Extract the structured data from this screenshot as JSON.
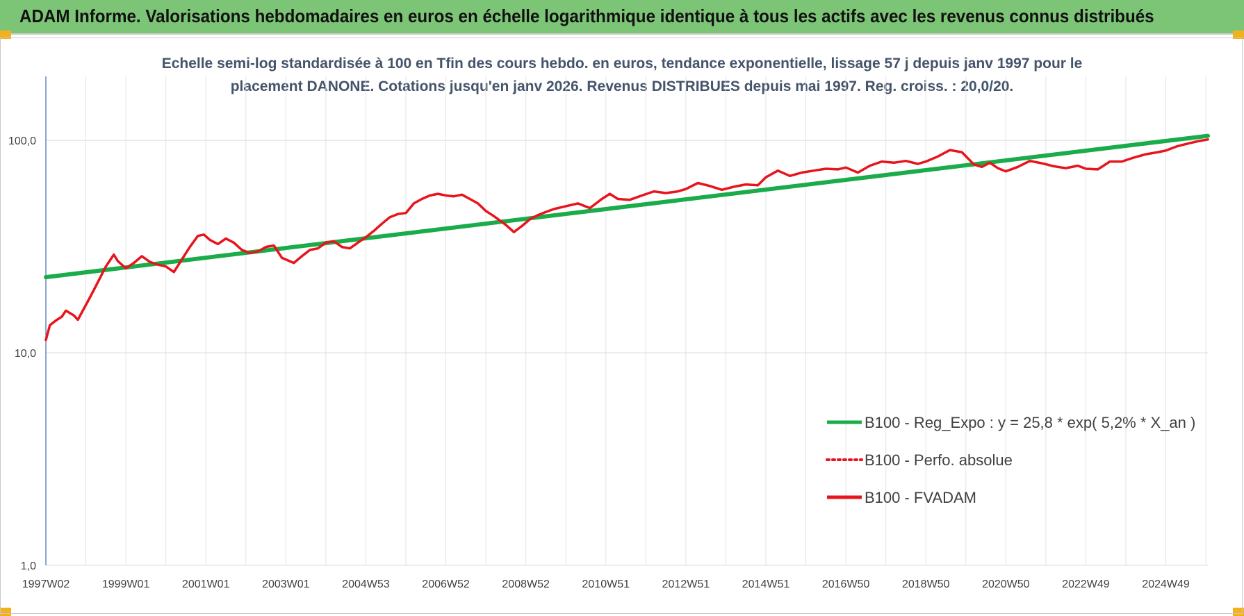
{
  "header": {
    "title": "ADAM Informe. Valorisations hebdomadaires en euros en échelle logarithmique identique à tous les actifs avec les revenus connus distribués"
  },
  "chart_data": {
    "type": "line",
    "y_scale": "log",
    "title_line1": "Echelle semi-log standardisée à 100 en Tfin des cours hebdo. en euros, tendance exponentielle, lissage 57 j depuis janv 1997 pour le",
    "title_line2": "placement DANONE. Cotations jusqu'en janv 2026.  Revenus DISTRIBUES depuis mai 1997. Reg.  croiss. : 20,0/20.",
    "xlabel": "",
    "ylabel": "",
    "ylim": [
      1,
      200
    ],
    "y_ticks": [
      {
        "value": 1,
        "label": "1,0"
      },
      {
        "value": 10,
        "label": "10,0"
      },
      {
        "value": 100,
        "label": "100,0"
      }
    ],
    "x_range": [
      1997.0,
      2026.05
    ],
    "x_ticks": [
      {
        "x": 1997.0,
        "label": "1997W02"
      },
      {
        "x": 1999.0,
        "label": "1999W01"
      },
      {
        "x": 2001.0,
        "label": "2001W01"
      },
      {
        "x": 2003.0,
        "label": "2003W01"
      },
      {
        "x": 2005.0,
        "label": "2004W53"
      },
      {
        "x": 2007.0,
        "label": "2006W52"
      },
      {
        "x": 2009.0,
        "label": "2008W52"
      },
      {
        "x": 2011.0,
        "label": "2010W51"
      },
      {
        "x": 2013.0,
        "label": "2012W51"
      },
      {
        "x": 2015.0,
        "label": "2014W51"
      },
      {
        "x": 2017.0,
        "label": "2016W50"
      },
      {
        "x": 2019.0,
        "label": "2018W50"
      },
      {
        "x": 2021.0,
        "label": "2020W50"
      },
      {
        "x": 2023.0,
        "label": "2022W49"
      },
      {
        "x": 2025.0,
        "label": "2024W49"
      }
    ],
    "grid": true,
    "legend_position": "bottom-right",
    "series": [
      {
        "name": "B100 - Reg_Expo : y = 25,8 * exp( 5,2% *  X_an )",
        "color": "#1aab4a",
        "style": "solid",
        "x": [
          1997.0,
          2026.05
        ],
        "y": [
          22.7,
          105.0
        ]
      },
      {
        "name": "B100 - Perfo. absolue",
        "color": "#e8141b",
        "style": "dotted",
        "x": [],
        "y": []
      },
      {
        "name": "B100 - FVADAM",
        "color": "#e8141b",
        "style": "solid",
        "x": [
          1997.0,
          1997.1,
          1997.25,
          1997.4,
          1997.5,
          1997.7,
          1997.8,
          1998.0,
          1998.1,
          1998.3,
          1998.5,
          1998.7,
          1998.8,
          1999.0,
          1999.2,
          1999.4,
          1999.6,
          1999.8,
          2000.0,
          2000.2,
          2000.4,
          2000.6,
          2000.8,
          2000.95,
          2001.1,
          2001.3,
          2001.5,
          2001.7,
          2001.9,
          2002.1,
          2002.3,
          2002.5,
          2002.7,
          2002.9,
          2003.0,
          2003.2,
          2003.4,
          2003.6,
          2003.8,
          2004.0,
          2004.2,
          2004.4,
          2004.6,
          2004.8,
          2005.0,
          2005.2,
          2005.4,
          2005.6,
          2005.8,
          2006.0,
          2006.2,
          2006.4,
          2006.6,
          2006.8,
          2007.0,
          2007.2,
          2007.4,
          2007.6,
          2007.8,
          2008.0,
          2008.2,
          2008.5,
          2008.7,
          2008.9,
          2009.1,
          2009.3,
          2009.5,
          2009.7,
          2010.0,
          2010.3,
          2010.6,
          2010.9,
          2011.1,
          2011.3,
          2011.6,
          2011.9,
          2012.2,
          2012.5,
          2012.8,
          2013.0,
          2013.3,
          2013.6,
          2013.9,
          2014.2,
          2014.5,
          2014.8,
          2015.0,
          2015.3,
          2015.6,
          2015.9,
          2016.2,
          2016.5,
          2016.8,
          2017.0,
          2017.3,
          2017.6,
          2017.9,
          2018.2,
          2018.5,
          2018.8,
          2019.0,
          2019.3,
          2019.6,
          2019.9,
          2020.2,
          2020.4,
          2020.6,
          2020.8,
          2021.0,
          2021.3,
          2021.6,
          2021.9,
          2022.2,
          2022.5,
          2022.8,
          2023.0,
          2023.3,
          2023.6,
          2023.9,
          2024.2,
          2024.5,
          2024.8,
          2025.0,
          2025.3,
          2025.6,
          2025.8,
          2026.05
        ],
        "y": [
          11.5,
          13.5,
          14.2,
          14.8,
          15.8,
          15.0,
          14.3,
          16.8,
          18.2,
          21.5,
          25.5,
          29.0,
          27.0,
          25.0,
          26.5,
          28.5,
          26.8,
          26.0,
          25.5,
          24.0,
          27.5,
          31.5,
          35.5,
          36.0,
          34.0,
          32.5,
          34.5,
          33.0,
          30.5,
          29.5,
          30.0,
          31.5,
          32.0,
          28.0,
          27.5,
          26.5,
          28.5,
          30.5,
          31.0,
          33.0,
          33.5,
          31.5,
          31.0,
          33.0,
          35.0,
          37.5,
          40.5,
          43.5,
          45.0,
          45.5,
          50.5,
          53.0,
          55.0,
          56.0,
          55.0,
          54.5,
          55.5,
          53.0,
          50.5,
          46.5,
          44.0,
          40.0,
          37.0,
          39.5,
          42.5,
          44.5,
          46.0,
          47.5,
          49.0,
          50.5,
          48.0,
          53.0,
          56.0,
          53.0,
          52.5,
          55.0,
          57.5,
          56.5,
          57.5,
          59.0,
          63.0,
          61.0,
          58.5,
          60.5,
          62.0,
          61.5,
          67.0,
          72.0,
          68.0,
          70.5,
          72.0,
          73.5,
          73.0,
          74.5,
          70.5,
          76.0,
          79.5,
          78.5,
          80.0,
          77.5,
          79.5,
          84.0,
          90.0,
          88.0,
          77.0,
          75.0,
          78.5,
          74.0,
          71.5,
          75.0,
          80.0,
          78.0,
          75.5,
          74.0,
          76.0,
          73.5,
          73.0,
          79.5,
          79.5,
          83.0,
          86.0,
          88.0,
          89.5,
          94.0,
          97.0,
          99.0,
          101.0
        ]
      }
    ]
  }
}
